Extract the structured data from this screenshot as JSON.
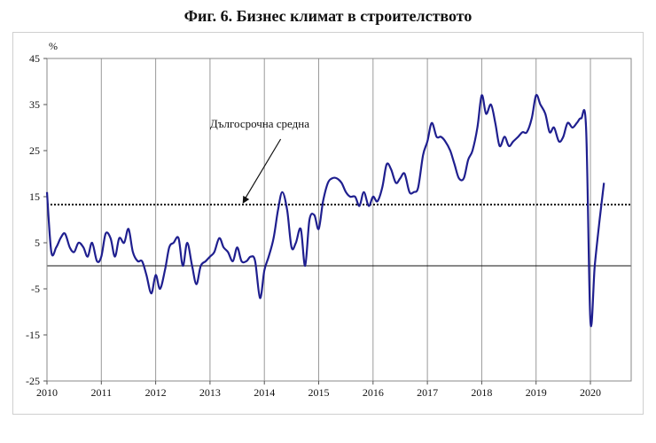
{
  "chart_data": {
    "type": "line",
    "title": "Фиг. 6. Бизнес климат в строителството",
    "ylabel": "%",
    "xlabel": "",
    "ylim": [
      -25,
      45
    ],
    "yticks": [
      45,
      35,
      25,
      15,
      5,
      -5,
      -15,
      -25
    ],
    "xlim": [
      2010,
      2020.75
    ],
    "xticks": [
      "2010",
      "2011",
      "2012",
      "2013",
      "2014",
      "2015",
      "2016",
      "2017",
      "2018",
      "2019",
      "2020"
    ],
    "grid": "vertical gridlines at each year",
    "annotation": {
      "text": "Дългосрочна средна",
      "target": [
        2013.6,
        13.3
      ]
    },
    "series": [
      {
        "color": "#1f1f8f",
        "points": [
          [
            2010.0,
            16
          ],
          [
            2010.08,
            3
          ],
          [
            2010.17,
            4
          ],
          [
            2010.25,
            6
          ],
          [
            2010.33,
            7
          ],
          [
            2010.42,
            4
          ],
          [
            2010.5,
            3
          ],
          [
            2010.58,
            5
          ],
          [
            2010.67,
            4
          ],
          [
            2010.75,
            2
          ],
          [
            2010.83,
            5
          ],
          [
            2010.92,
            1
          ],
          [
            2011.0,
            2
          ],
          [
            2011.08,
            7
          ],
          [
            2011.17,
            6
          ],
          [
            2011.25,
            2
          ],
          [
            2011.33,
            6
          ],
          [
            2011.42,
            5
          ],
          [
            2011.5,
            8
          ],
          [
            2011.58,
            3
          ],
          [
            2011.67,
            1
          ],
          [
            2011.75,
            1
          ],
          [
            2011.83,
            -2
          ],
          [
            2011.92,
            -6
          ],
          [
            2012.0,
            -2
          ],
          [
            2012.08,
            -5
          ],
          [
            2012.17,
            -1
          ],
          [
            2012.25,
            4
          ],
          [
            2012.33,
            5
          ],
          [
            2012.42,
            6
          ],
          [
            2012.5,
            0
          ],
          [
            2012.58,
            5
          ],
          [
            2012.67,
            0
          ],
          [
            2012.75,
            -4
          ],
          [
            2012.83,
            0
          ],
          [
            2012.92,
            1
          ],
          [
            2013.0,
            2
          ],
          [
            2013.08,
            3
          ],
          [
            2013.17,
            6
          ],
          [
            2013.25,
            4
          ],
          [
            2013.33,
            3
          ],
          [
            2013.42,
            1
          ],
          [
            2013.5,
            4
          ],
          [
            2013.58,
            1
          ],
          [
            2013.67,
            1
          ],
          [
            2013.75,
            2
          ],
          [
            2013.83,
            1
          ],
          [
            2013.92,
            -7
          ],
          [
            2014.0,
            -1
          ],
          [
            2014.08,
            2
          ],
          [
            2014.17,
            6
          ],
          [
            2014.25,
            12
          ],
          [
            2014.33,
            16
          ],
          [
            2014.42,
            12
          ],
          [
            2014.5,
            4
          ],
          [
            2014.58,
            5
          ],
          [
            2014.67,
            8
          ],
          [
            2014.75,
            0
          ],
          [
            2014.83,
            10
          ],
          [
            2014.92,
            11
          ],
          [
            2015.0,
            8
          ],
          [
            2015.08,
            14
          ],
          [
            2015.17,
            18
          ],
          [
            2015.25,
            19
          ],
          [
            2015.33,
            19
          ],
          [
            2015.42,
            18
          ],
          [
            2015.5,
            16
          ],
          [
            2015.58,
            15
          ],
          [
            2015.67,
            15
          ],
          [
            2015.75,
            13
          ],
          [
            2015.83,
            16
          ],
          [
            2015.92,
            13
          ],
          [
            2016.0,
            15
          ],
          [
            2016.08,
            14
          ],
          [
            2016.17,
            17
          ],
          [
            2016.25,
            22
          ],
          [
            2016.33,
            21
          ],
          [
            2016.42,
            18
          ],
          [
            2016.5,
            19
          ],
          [
            2016.58,
            20
          ],
          [
            2016.67,
            16
          ],
          [
            2016.75,
            16
          ],
          [
            2016.83,
            17
          ],
          [
            2016.92,
            24
          ],
          [
            2017.0,
            27
          ],
          [
            2017.08,
            31
          ],
          [
            2017.17,
            28
          ],
          [
            2017.25,
            28
          ],
          [
            2017.33,
            27
          ],
          [
            2017.42,
            25
          ],
          [
            2017.5,
            22
          ],
          [
            2017.58,
            19
          ],
          [
            2017.67,
            19
          ],
          [
            2017.75,
            23
          ],
          [
            2017.83,
            25
          ],
          [
            2017.92,
            30
          ],
          [
            2018.0,
            37
          ],
          [
            2018.08,
            33
          ],
          [
            2018.17,
            35
          ],
          [
            2018.25,
            31
          ],
          [
            2018.33,
            26
          ],
          [
            2018.42,
            28
          ],
          [
            2018.5,
            26
          ],
          [
            2018.58,
            27
          ],
          [
            2018.67,
            28
          ],
          [
            2018.75,
            29
          ],
          [
            2018.83,
            29
          ],
          [
            2018.92,
            32
          ],
          [
            2019.0,
            37
          ],
          [
            2019.08,
            35
          ],
          [
            2019.17,
            33
          ],
          [
            2019.25,
            29
          ],
          [
            2019.33,
            30
          ],
          [
            2019.42,
            27
          ],
          [
            2019.5,
            28
          ],
          [
            2019.58,
            31
          ],
          [
            2019.67,
            30
          ],
          [
            2019.75,
            31
          ],
          [
            2019.83,
            32
          ],
          [
            2019.92,
            30
          ],
          [
            2020.0,
            -12
          ],
          [
            2020.08,
            0
          ],
          [
            2020.17,
            10
          ],
          [
            2020.25,
            18
          ]
        ]
      }
    ],
    "reference_lines": [
      {
        "y": 13.3,
        "style": "dotted"
      },
      {
        "y": 0,
        "style": "solid"
      }
    ]
  }
}
